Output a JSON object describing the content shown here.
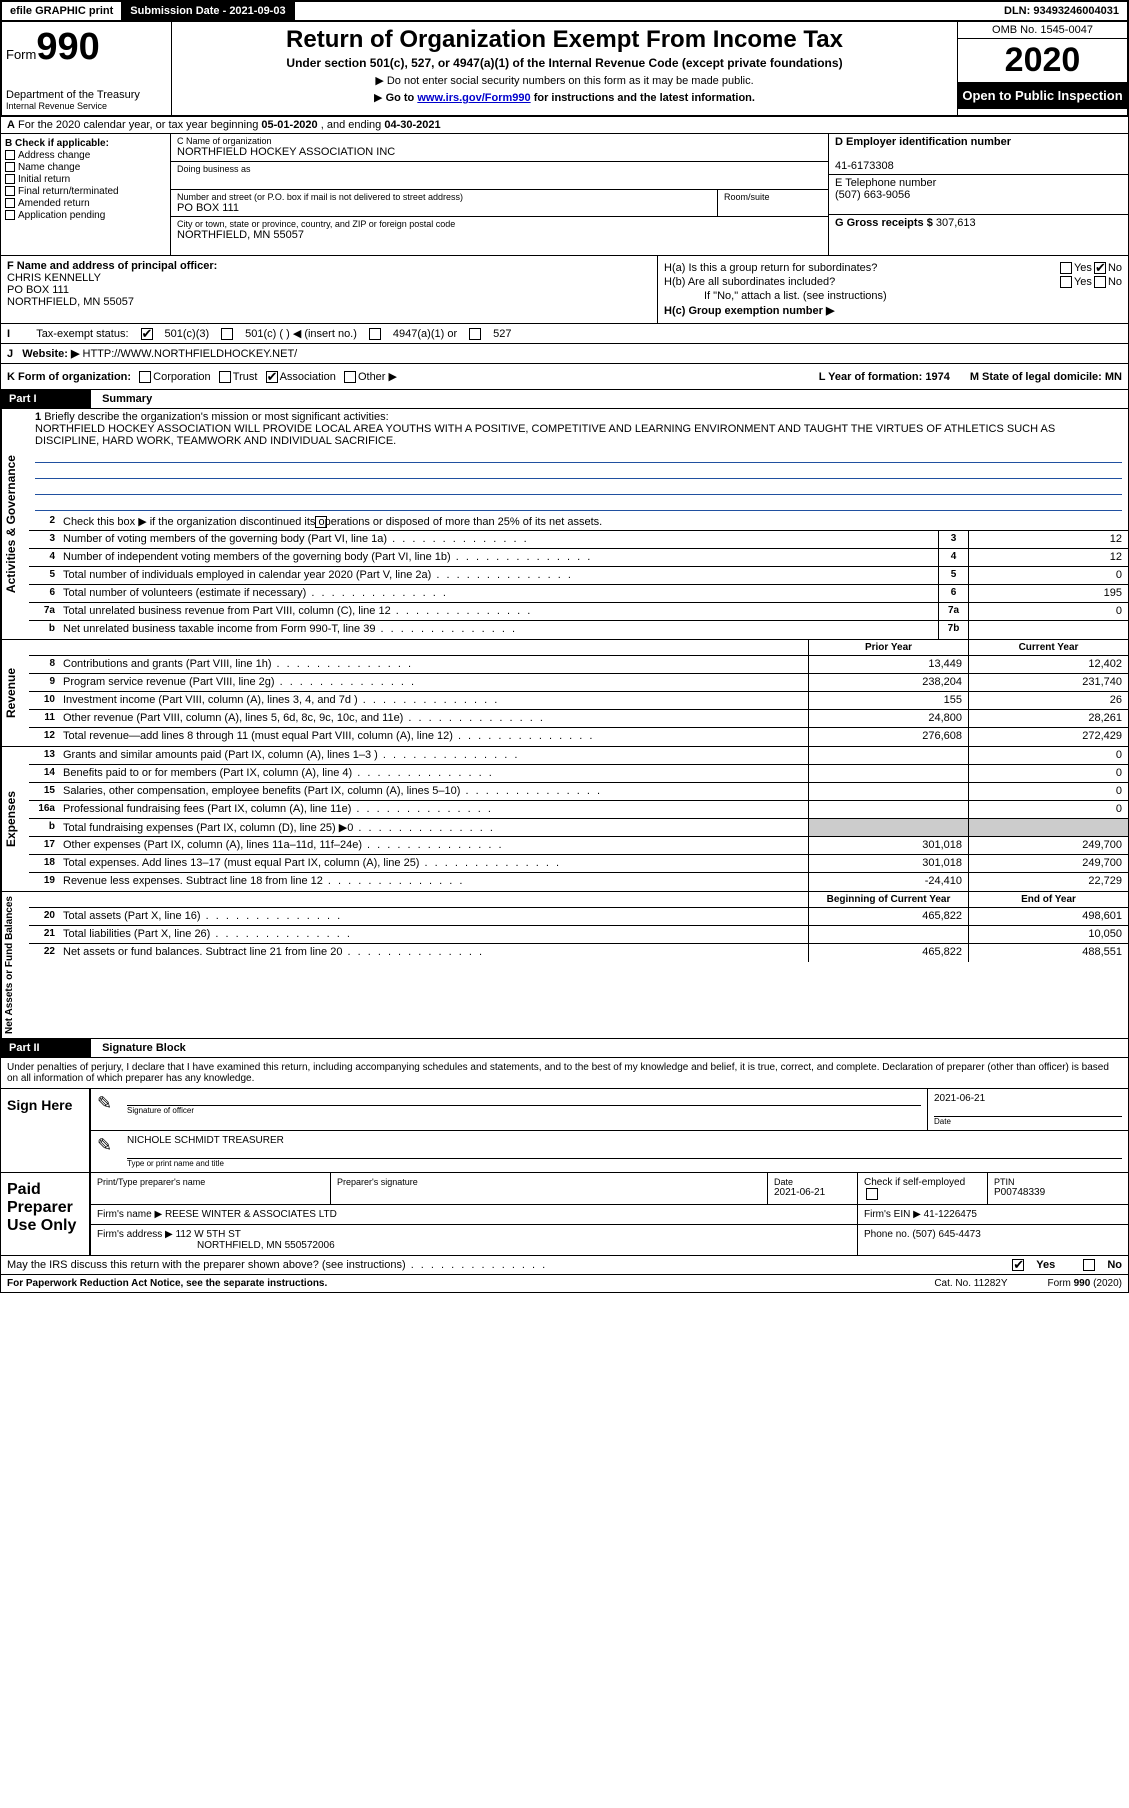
{
  "top": {
    "efile": "efile GRAPHIC print",
    "sub_label": "Submission Date - 2021-09-03",
    "dln": "DLN: 93493246004031"
  },
  "header": {
    "form_word": "Form",
    "form_num": "990",
    "dept1": "Department of the Treasury",
    "dept2": "Internal Revenue Service",
    "title": "Return of Organization Exempt From Income Tax",
    "subtitle": "Under section 501(c), 527, or 4947(a)(1) of the Internal Revenue Code (except private foundations)",
    "note1": "Do not enter social security numbers on this form as it may be made public.",
    "note2_pre": "Go to ",
    "note2_link": "www.irs.gov/Form990",
    "note2_post": " for instructions and the latest information.",
    "omb": "OMB No. 1545-0047",
    "year": "2020",
    "open": "Open to Public Inspection"
  },
  "row_a": {
    "label": "A",
    "text_pre": "For the 2020 calendar year, or tax year beginning ",
    "begin": "05-01-2020",
    "mid": " , and ending ",
    "end": "04-30-2021"
  },
  "b": {
    "label": "B Check if applicable:",
    "opts": [
      "Address change",
      "Name change",
      "Initial return",
      "Final return/terminated",
      "Amended return",
      "Application pending"
    ]
  },
  "c": {
    "name_lbl": "C Name of organization",
    "name": "NORTHFIELD HOCKEY ASSOCIATION INC",
    "dba_lbl": "Doing business as",
    "street_lbl": "Number and street (or P.O. box if mail is not delivered to street address)",
    "room_lbl": "Room/suite",
    "street": "PO BOX 111",
    "city_lbl": "City or town, state or province, country, and ZIP or foreign postal code",
    "city": "NORTHFIELD, MN  55057"
  },
  "d": {
    "lbl": "D Employer identification number",
    "val": "41-6173308"
  },
  "e": {
    "lbl": "E Telephone number",
    "val": "(507) 663-9056"
  },
  "g": {
    "lbl": "G Gross receipts $",
    "val": "307,613"
  },
  "f": {
    "lbl": "F  Name and address of principal officer:",
    "name": "CHRIS KENNELLY",
    "addr1": "PO BOX 111",
    "addr2": "NORTHFIELD, MN  55057"
  },
  "h": {
    "a": "H(a)  Is this a group return for subordinates?",
    "b": "H(b)  Are all subordinates included?",
    "b_note": "If \"No,\" attach a list. (see instructions)",
    "c": "H(c)  Group exemption number ▶",
    "yes": "Yes",
    "no": "No"
  },
  "i": {
    "lbl": "Tax-exempt status:",
    "o1": "501(c)(3)",
    "o2": "501(c) (  ) ◀ (insert no.)",
    "o3": "4947(a)(1) or",
    "o4": "527"
  },
  "j": {
    "lbl": "J",
    "text": "Website: ▶",
    "val": "HTTP://WWW.NORTHFIELDHOCKEY.NET/"
  },
  "k": {
    "lbl": "K Form of organization:",
    "o1": "Corporation",
    "o2": "Trust",
    "o3": "Association",
    "o4": "Other ▶",
    "l": "L Year of formation: 1974",
    "m": "M State of legal domicile: MN"
  },
  "part1": {
    "hdr": "Part I",
    "title": "Summary"
  },
  "s1": {
    "side": "Activities & Governance",
    "l1_lbl": "1",
    "l1": "Briefly describe the organization's mission or most significant activities:",
    "mission": "NORTHFIELD HOCKEY ASSOCIATION WILL PROVIDE LOCAL AREA YOUTHS WITH A POSITIVE, COMPETITIVE AND LEARNING ENVIRONMENT AND TAUGHT THE VIRTUES OF ATHLETICS SUCH AS DISCIPLINE, HARD WORK, TEAMWORK AND INDIVIDUAL SACRIFICE.",
    "l2": "Check this box ▶       if the organization discontinued its operations or disposed of more than 25% of its net assets.",
    "rows": [
      {
        "n": "3",
        "t": "Number of voting members of the governing body (Part VI, line 1a)",
        "b": "3",
        "v": "12"
      },
      {
        "n": "4",
        "t": "Number of independent voting members of the governing body (Part VI, line 1b)",
        "b": "4",
        "v": "12"
      },
      {
        "n": "5",
        "t": "Total number of individuals employed in calendar year 2020 (Part V, line 2a)",
        "b": "5",
        "v": "0"
      },
      {
        "n": "6",
        "t": "Total number of volunteers (estimate if necessary)",
        "b": "6",
        "v": "195"
      },
      {
        "n": "7a",
        "t": "Total unrelated business revenue from Part VIII, column (C), line 12",
        "b": "7a",
        "v": "0"
      },
      {
        "n": "b",
        "t": "Net unrelated business taxable income from Form 990-T, line 39",
        "b": "7b",
        "v": ""
      }
    ]
  },
  "s2": {
    "side": "Revenue",
    "py": "Prior Year",
    "cy": "Current Year",
    "rows": [
      {
        "n": "8",
        "t": "Contributions and grants (Part VIII, line 1h)",
        "p": "13,449",
        "c": "12,402"
      },
      {
        "n": "9",
        "t": "Program service revenue (Part VIII, line 2g)",
        "p": "238,204",
        "c": "231,740"
      },
      {
        "n": "10",
        "t": "Investment income (Part VIII, column (A), lines 3, 4, and 7d )",
        "p": "155",
        "c": "26"
      },
      {
        "n": "11",
        "t": "Other revenue (Part VIII, column (A), lines 5, 6d, 8c, 9c, 10c, and 11e)",
        "p": "24,800",
        "c": "28,261"
      },
      {
        "n": "12",
        "t": "Total revenue—add lines 8 through 11 (must equal Part VIII, column (A), line 12)",
        "p": "276,608",
        "c": "272,429"
      }
    ]
  },
  "s3": {
    "side": "Expenses",
    "rows": [
      {
        "n": "13",
        "t": "Grants and similar amounts paid (Part IX, column (A), lines 1–3 )",
        "p": "",
        "c": "0"
      },
      {
        "n": "14",
        "t": "Benefits paid to or for members (Part IX, column (A), line 4)",
        "p": "",
        "c": "0"
      },
      {
        "n": "15",
        "t": "Salaries, other compensation, employee benefits (Part IX, column (A), lines 5–10)",
        "p": "",
        "c": "0"
      },
      {
        "n": "16a",
        "t": "Professional fundraising fees (Part IX, column (A), line 11e)",
        "p": "",
        "c": "0"
      },
      {
        "n": "b",
        "t": "Total fundraising expenses (Part IX, column (D), line 25) ▶0",
        "p": "shade",
        "c": "shade"
      },
      {
        "n": "17",
        "t": "Other expenses (Part IX, column (A), lines 11a–11d, 11f–24e)",
        "p": "301,018",
        "c": "249,700"
      },
      {
        "n": "18",
        "t": "Total expenses. Add lines 13–17 (must equal Part IX, column (A), line 25)",
        "p": "301,018",
        "c": "249,700"
      },
      {
        "n": "19",
        "t": "Revenue less expenses. Subtract line 18 from line 12",
        "p": "-24,410",
        "c": "22,729"
      }
    ]
  },
  "s4": {
    "side": "Net Assets or Fund Balances",
    "by": "Beginning of Current Year",
    "ey": "End of Year",
    "rows": [
      {
        "n": "20",
        "t": "Total assets (Part X, line 16)",
        "p": "465,822",
        "c": "498,601"
      },
      {
        "n": "21",
        "t": "Total liabilities (Part X, line 26)",
        "p": "",
        "c": "10,050"
      },
      {
        "n": "22",
        "t": "Net assets or fund balances. Subtract line 21 from line 20",
        "p": "465,822",
        "c": "488,551"
      }
    ]
  },
  "part2": {
    "hdr": "Part II",
    "title": "Signature Block"
  },
  "sig": {
    "decl": "Under penalties of perjury, I declare that I have examined this return, including accompanying schedules and statements, and to the best of my knowledge and belief, it is true, correct, and complete. Declaration of preparer (other than officer) is based on all information of which preparer has any knowledge.",
    "here": "Sign Here",
    "sig_lbl": "Signature of officer",
    "date_lbl": "Date",
    "date": "2021-06-21",
    "name": "NICHOLE SCHMIDT TREASURER",
    "name_lbl": "Type or print name and title",
    "paid": "Paid Preparer Use Only",
    "p_name_lbl": "Print/Type preparer's name",
    "p_sig_lbl": "Preparer's signature",
    "p_date_lbl": "Date",
    "p_date": "2021-06-21",
    "p_self": "Check       if self-employed",
    "ptin_lbl": "PTIN",
    "ptin": "P00748339",
    "firm_name_lbl": "Firm's name    ▶",
    "firm_name": "REESE WINTER & ASSOCIATES LTD",
    "firm_ein_lbl": "Firm's EIN ▶",
    "firm_ein": "41-1226475",
    "firm_addr_lbl": "Firm's address ▶",
    "firm_addr1": "112 W 5TH ST",
    "firm_addr2": "NORTHFIELD, MN  550572006",
    "phone_lbl": "Phone no.",
    "phone": "(507) 645-4473",
    "discuss": "May the IRS discuss this return with the preparer shown above? (see instructions)"
  },
  "footer": {
    "l": "For Paperwork Reduction Act Notice, see the separate instructions.",
    "c": "Cat. No. 11282Y",
    "r": "Form 990 (2020)"
  }
}
